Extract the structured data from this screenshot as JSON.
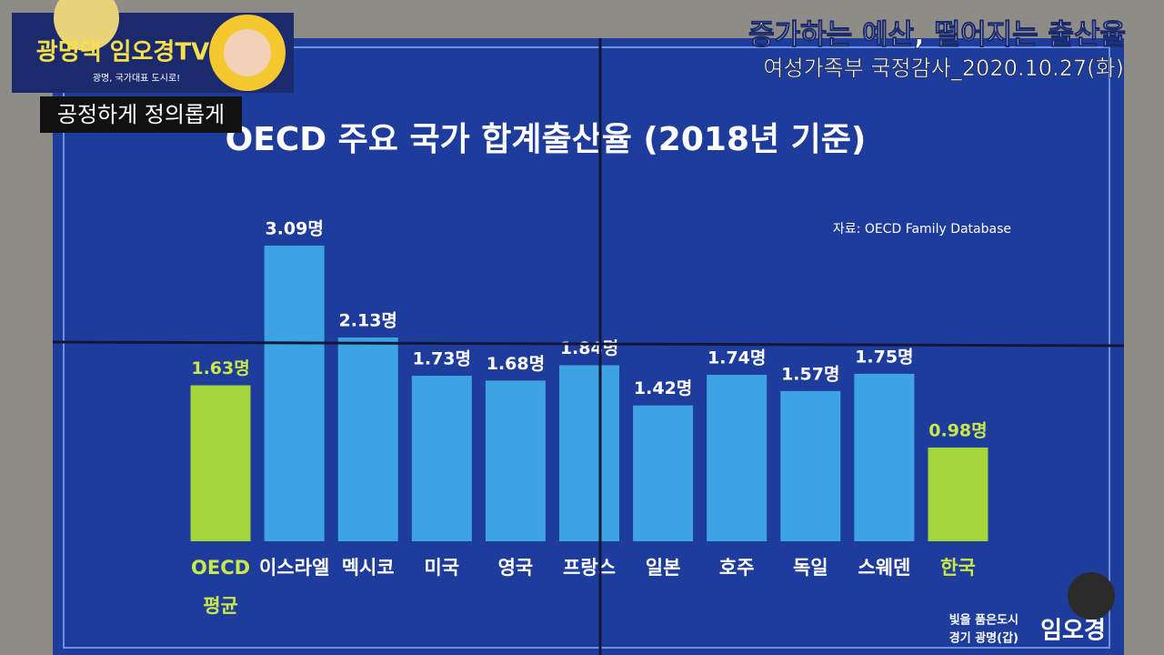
{
  "chart_data": {
    "type": "bar",
    "title": "OECD 주요 국가 합계출산율 (2018년 기준)",
    "source": "자료: OECD Family Database",
    "categories": [
      "OECD 평균",
      "이스라엘",
      "멕시코",
      "미국",
      "영국",
      "프랑스",
      "일본",
      "호주",
      "독일",
      "스웨덴",
      "한국"
    ],
    "values": [
      1.63,
      3.09,
      2.13,
      1.73,
      1.68,
      1.84,
      1.42,
      1.74,
      1.57,
      1.75,
      0.98
    ],
    "value_labels": [
      "1.63명",
      "3.09명",
      "2.13명",
      "1.73명",
      "1.68명",
      "1.84명",
      "1.42명",
      "1.74명",
      "1.57명",
      "1.75명",
      "0.98명"
    ],
    "colors": [
      "#a4d63b",
      "#3ea3e3",
      "#3ea3e3",
      "#3ea3e3",
      "#3ea3e3",
      "#3ea3e3",
      "#3ea3e3",
      "#3ea3e3",
      "#3ea3e3",
      "#3ea3e3",
      "#a4d63b"
    ],
    "label_colors": [
      "#c9e84a",
      "#ffffff",
      "#ffffff",
      "#ffffff",
      "#ffffff",
      "#ffffff",
      "#ffffff",
      "#ffffff",
      "#ffffff",
      "#ffffff",
      "#c9e84a"
    ]
  },
  "overlay": {
    "headline": "증가하는 예산, 떨어지는 출산율",
    "subheadline": "여성가족부 국정감사_2020.10.27(화)",
    "channel": "광명댁 임오경TV",
    "channel_slogan": "광명, 국가대표 도시로!",
    "motto": "공정하게 정의롭게",
    "badge_line1": "빛을 품은도시",
    "badge_line2": "경기 광명(갑)",
    "badge_name": "임오경"
  }
}
